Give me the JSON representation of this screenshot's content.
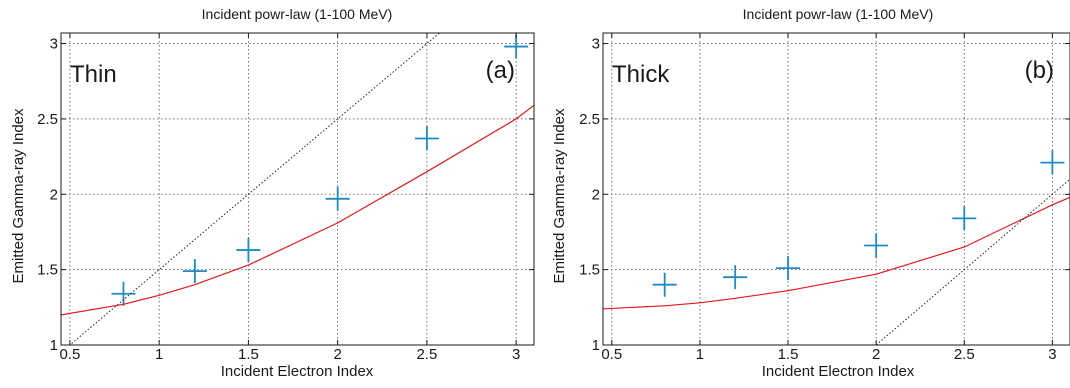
{
  "chart_data": [
    {
      "type": "scatter",
      "panel_label": "(a)",
      "annotation": "Thin",
      "title": "Incident powr-law (1-100 MeV)",
      "xlabel": "Incident Electron Index",
      "ylabel": "Emitted Gamma-ray Index",
      "xlim": [
        0.45,
        3.1
      ],
      "ylim": [
        1,
        3.07
      ],
      "xticks": [
        0.5,
        1,
        1.5,
        2,
        2.5,
        3
      ],
      "yticks": [
        1,
        1.5,
        2,
        2.5,
        3
      ],
      "xtick_labels": [
        "0.5",
        "1",
        "1.5",
        "2",
        "2.5",
        "3"
      ],
      "ytick_labels": [
        "1",
        "1.5",
        "2",
        "2.5",
        "3"
      ],
      "grid": true,
      "series": [
        {
          "kind": "points",
          "marker": "plus",
          "color": "#1f8ac6",
          "x": [
            0.8,
            1.2,
            1.5,
            2.0,
            2.5,
            3.0
          ],
          "y": [
            1.34,
            1.49,
            1.63,
            1.97,
            2.37,
            2.98
          ]
        },
        {
          "kind": "line",
          "color": "#e41a1c",
          "x": [
            0.45,
            0.8,
            1.0,
            1.2,
            1.5,
            2.0,
            2.5,
            3.0,
            3.1
          ],
          "y": [
            1.2,
            1.27,
            1.33,
            1.4,
            1.53,
            1.81,
            2.15,
            2.5,
            2.59
          ]
        },
        {
          "kind": "line",
          "style": "dotted",
          "color": "#222222",
          "x": [
            0.45,
            3.1
          ],
          "y": [
            0.95,
            3.6
          ]
        }
      ]
    },
    {
      "type": "scatter",
      "panel_label": "(b)",
      "annotation": "Thick",
      "title": "Incident powr-law (1-100 MeV)",
      "xlabel": "Incident Electron Index",
      "ylabel": "Emitted Gamma-ray Index",
      "xlim": [
        0.45,
        3.1
      ],
      "ylim": [
        1,
        3.07
      ],
      "xticks": [
        0.5,
        1,
        1.5,
        2,
        2.5,
        3
      ],
      "yticks": [
        1,
        1.5,
        2,
        2.5,
        3
      ],
      "xtick_labels": [
        "0.5",
        "1",
        "1.5",
        "2",
        "2.5",
        "3"
      ],
      "ytick_labels": [
        "1",
        "1.5",
        "2",
        "2.5",
        "3"
      ],
      "grid": true,
      "series": [
        {
          "kind": "points",
          "marker": "plus",
          "color": "#1f8ac6",
          "x": [
            0.8,
            1.2,
            1.5,
            2.0,
            2.5,
            3.0
          ],
          "y": [
            1.4,
            1.45,
            1.51,
            1.66,
            1.84,
            2.21
          ]
        },
        {
          "kind": "line",
          "color": "#e41a1c",
          "x": [
            0.45,
            0.8,
            1.0,
            1.2,
            1.5,
            2.0,
            2.5,
            3.0,
            3.1
          ],
          "y": [
            1.24,
            1.26,
            1.28,
            1.31,
            1.36,
            1.47,
            1.65,
            1.93,
            1.98
          ]
        },
        {
          "kind": "line",
          "style": "dotted",
          "color": "#222222",
          "x": [
            2.0,
            3.1
          ],
          "y": [
            1.0,
            2.1
          ]
        }
      ]
    }
  ]
}
